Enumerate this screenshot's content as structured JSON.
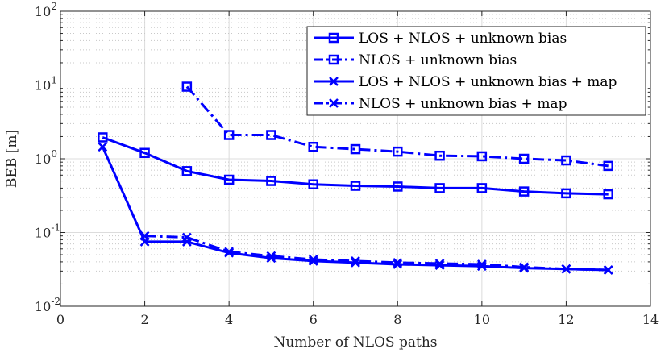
{
  "chart_data": {
    "type": "line",
    "title": "",
    "xlabel": "Number of NLOS paths",
    "ylabel": "BEB [m]",
    "xlim": [
      0,
      14
    ],
    "ylim": [
      0.01,
      100
    ],
    "yscale": "log",
    "grid": true,
    "x_ticks": [
      0,
      2,
      4,
      6,
      8,
      10,
      12,
      14
    ],
    "x_tick_labels": [
      "0",
      "2",
      "4",
      "6",
      "8",
      "10",
      "12",
      "14"
    ],
    "y_ticks": [
      {
        "value": 0.01,
        "base": "10",
        "exp": "-2"
      },
      {
        "value": 0.1,
        "base": "10",
        "exp": "-1"
      },
      {
        "value": 1,
        "base": "10",
        "exp": "0"
      },
      {
        "value": 10,
        "base": "10",
        "exp": "1"
      },
      {
        "value": 100,
        "base": "10",
        "exp": "2"
      }
    ],
    "legend_position": "top-right",
    "series": [
      {
        "name": "LOS + NLOS + unknown bias",
        "line_style": "solid",
        "marker": "square",
        "color": "#0000ff",
        "x": [
          1,
          2,
          3,
          4,
          5,
          6,
          7,
          8,
          9,
          10,
          11,
          12,
          13
        ],
        "values": [
          1.95,
          1.2,
          0.68,
          0.52,
          0.5,
          0.45,
          0.43,
          0.42,
          0.4,
          0.4,
          0.36,
          0.34,
          0.33
        ]
      },
      {
        "name": "NLOS + unknown bias",
        "line_style": "dashdot",
        "marker": "square",
        "color": "#0000ff",
        "x": [
          3,
          4,
          5,
          6,
          7,
          8,
          9,
          10,
          11,
          12,
          13
        ],
        "values": [
          9.5,
          2.1,
          2.1,
          1.45,
          1.35,
          1.25,
          1.1,
          1.08,
          1.0,
          0.95,
          0.8
        ]
      },
      {
        "name": "LOS + NLOS + unknown bias + map",
        "line_style": "solid",
        "marker": "x",
        "color": "#0000ff",
        "x": [
          1,
          2,
          3,
          4,
          5,
          6,
          7,
          8,
          9,
          10,
          11,
          12,
          13
        ],
        "values": [
          1.45,
          0.075,
          0.075,
          0.053,
          0.045,
          0.041,
          0.039,
          0.037,
          0.036,
          0.035,
          0.033,
          0.032,
          0.031
        ]
      },
      {
        "name": "NLOS + unknown bias + map",
        "line_style": "dashdot",
        "marker": "x",
        "color": "#0000ff",
        "x": [
          2,
          3,
          4,
          5,
          6,
          7,
          8,
          9,
          10,
          11,
          12,
          13
        ],
        "values": [
          0.09,
          0.086,
          0.055,
          0.048,
          0.043,
          0.041,
          0.039,
          0.038,
          0.037,
          0.034,
          0.032,
          0.031
        ]
      }
    ]
  }
}
